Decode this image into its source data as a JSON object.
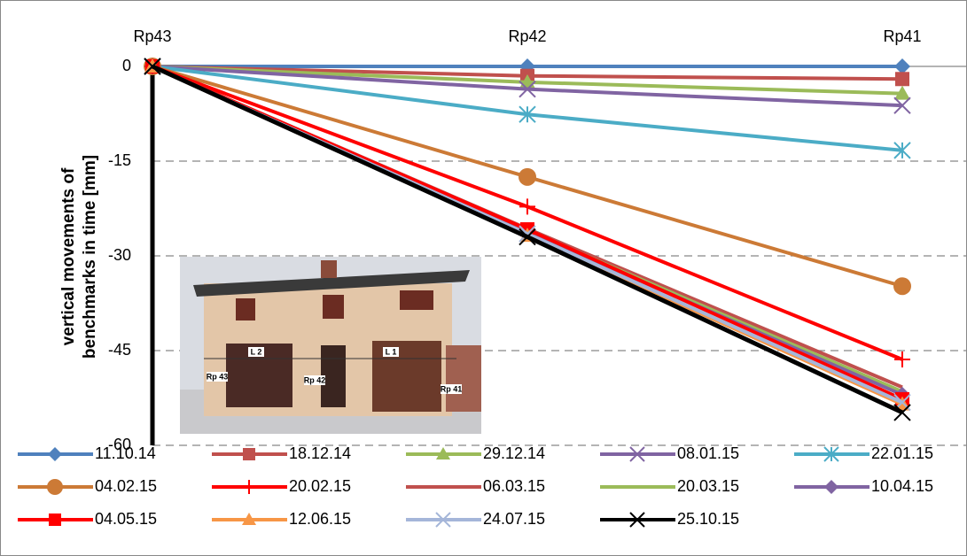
{
  "chart_data": {
    "type": "line",
    "ylabel": [
      "vertical movements of",
      "benchmarks in time [mm]"
    ],
    "categories": [
      "Rp43",
      "Rp42",
      "Rp41"
    ],
    "ylim": [
      -60,
      0
    ],
    "yticks": [
      0,
      -15,
      -30,
      -45,
      -60
    ],
    "grid": true,
    "annotations": [
      "L 2",
      "L 1",
      "Rp 43",
      "Rp 42",
      "Rp 41"
    ],
    "series": [
      {
        "name": "11.10.14",
        "color": "#4f81bd",
        "marker": "diamond",
        "values": [
          0,
          0,
          0
        ]
      },
      {
        "name": "18.12.14",
        "color": "#c0504d",
        "marker": "square",
        "values": [
          0,
          -1.5,
          -2
        ]
      },
      {
        "name": "29.12.14",
        "color": "#9bbb59",
        "marker": "triangle",
        "values": [
          0,
          -2.5,
          -4.3
        ]
      },
      {
        "name": "08.01.15",
        "color": "#8064a2",
        "marker": "x",
        "values": [
          0,
          -3.6,
          -6.2
        ]
      },
      {
        "name": "22.01.15",
        "color": "#4bacc6",
        "marker": "star",
        "values": [
          0,
          -7.6,
          -13.3
        ]
      },
      {
        "name": "04.02.15",
        "color": "#cc7a36",
        "marker": "circle",
        "values": [
          0,
          -17.5,
          -34.8
        ]
      },
      {
        "name": "20.02.15",
        "color": "#ff0000",
        "marker": "plus",
        "values": [
          0,
          -22.2,
          -46.4
        ]
      },
      {
        "name": "06.03.15",
        "color": "#c0504d",
        "marker": "none",
        "values": [
          0,
          -25.7,
          -50.8
        ]
      },
      {
        "name": "20.03.15",
        "color": "#9bbb59",
        "marker": "none",
        "values": [
          0,
          -26,
          -51.5
        ]
      },
      {
        "name": "10.04.15",
        "color": "#8064a2",
        "marker": "diamond",
        "values": [
          0,
          -26.2,
          -52
        ]
      },
      {
        "name": "04.05.15",
        "color": "#ff0000",
        "marker": "square",
        "values": [
          0,
          -25.8,
          -52.7
        ]
      },
      {
        "name": "12.06.15",
        "color": "#f79646",
        "marker": "triangle",
        "values": [
          0,
          -26.8,
          -53.5
        ]
      },
      {
        "name": "24.07.15",
        "color": "#a5b6d9",
        "marker": "x",
        "values": [
          0,
          -26.5,
          -53.2
        ]
      },
      {
        "name": "25.10.15",
        "color": "#000000",
        "marker": "x",
        "values": [
          0,
          -27,
          -54.8
        ]
      }
    ]
  }
}
